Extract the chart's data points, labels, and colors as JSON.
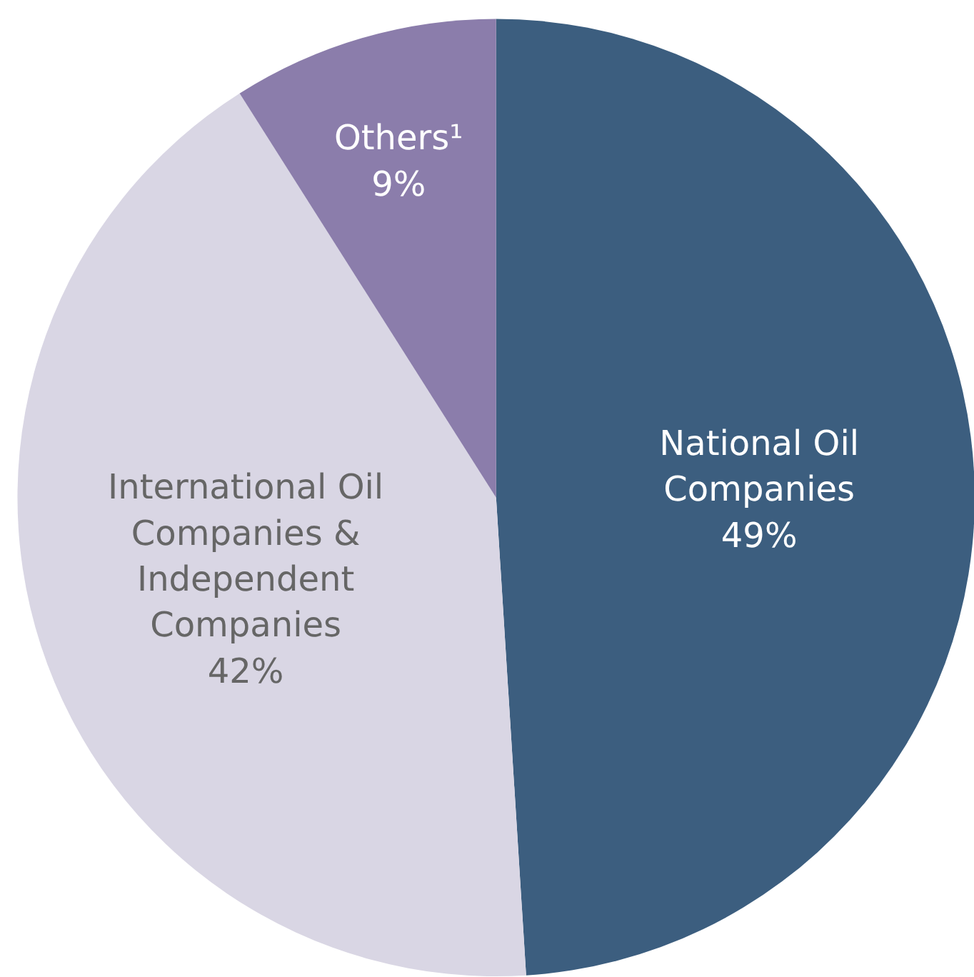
{
  "chart_data": {
    "type": "pie",
    "categories": [
      "National Oil\nCompanies",
      "International Oil\nCompanies &\nIndependent\nCompanies",
      "Others¹"
    ],
    "values": [
      49,
      42,
      9
    ],
    "value_labels": [
      "49%",
      "42%",
      "9%"
    ],
    "colors": [
      "#3c5e7f",
      "#d9d6e4",
      "#8b7dab"
    ]
  }
}
